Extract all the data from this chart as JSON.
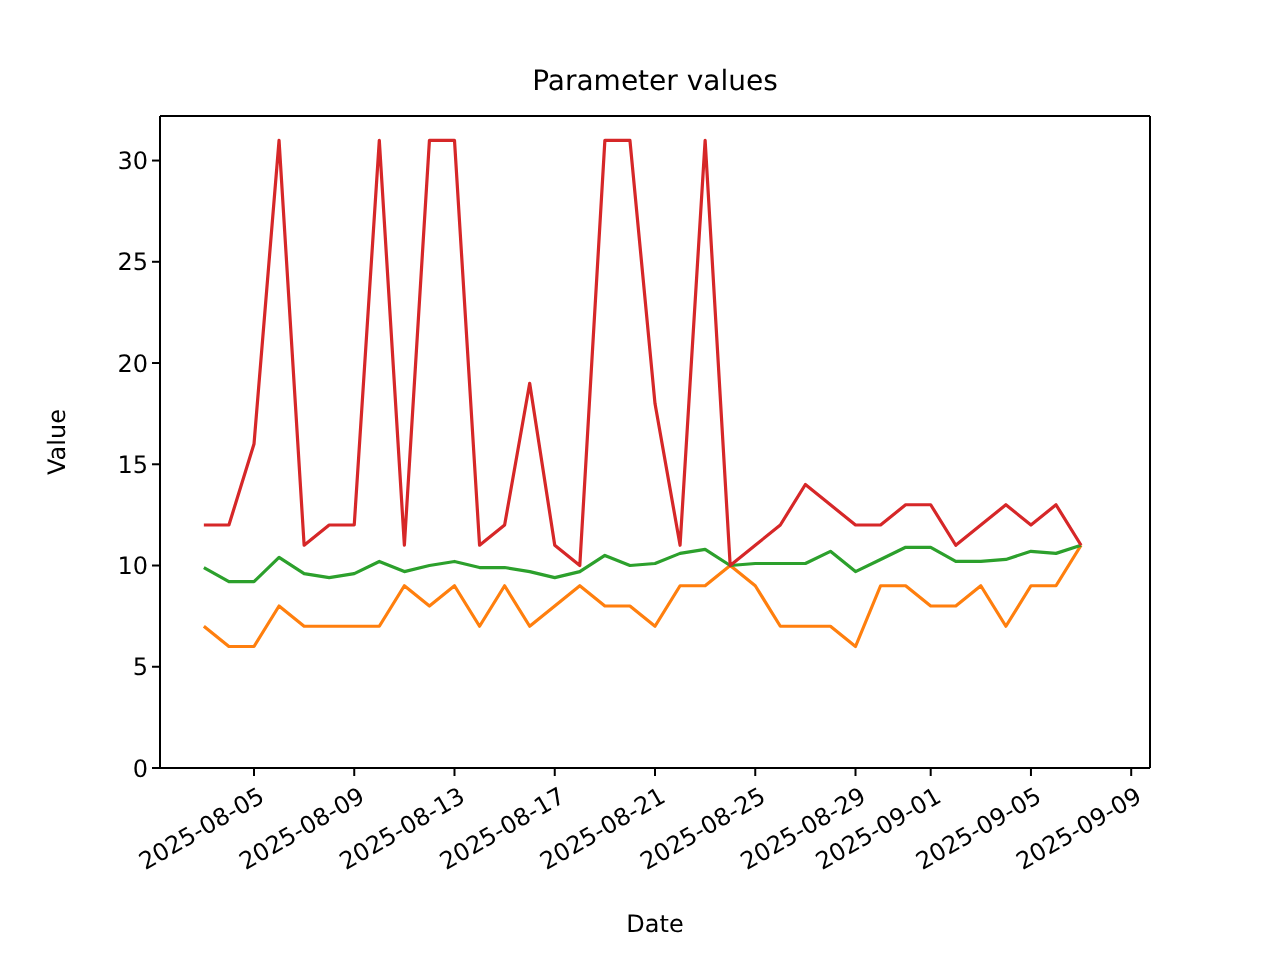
{
  "chart_data": {
    "type": "line",
    "title": "Parameter values",
    "xlabel": "Date",
    "ylabel": "Value",
    "x": [
      "2025-08-03",
      "2025-08-04",
      "2025-08-05",
      "2025-08-06",
      "2025-08-07",
      "2025-08-08",
      "2025-08-09",
      "2025-08-10",
      "2025-08-11",
      "2025-08-12",
      "2025-08-13",
      "2025-08-14",
      "2025-08-15",
      "2025-08-16",
      "2025-08-17",
      "2025-08-18",
      "2025-08-19",
      "2025-08-20",
      "2025-08-21",
      "2025-08-22",
      "2025-08-23",
      "2025-08-24",
      "2025-08-25",
      "2025-08-26",
      "2025-08-27",
      "2025-08-28",
      "2025-08-29",
      "2025-08-30",
      "2025-08-31",
      "2025-09-01",
      "2025-09-02",
      "2025-09-03",
      "2025-09-04",
      "2025-09-05",
      "2025-09-06",
      "2025-09-07"
    ],
    "series": [
      {
        "color": "#ff7f0e",
        "values": [
          7,
          6,
          6,
          8,
          7,
          7,
          7,
          7,
          9,
          8,
          9,
          7,
          9,
          7,
          8,
          9,
          8,
          8,
          7,
          9,
          9,
          10,
          9,
          7,
          7,
          7,
          6,
          9,
          9,
          8,
          8,
          9,
          7,
          9,
          9,
          11
        ]
      },
      {
        "color": "#2ca02c",
        "values": [
          9.9,
          9.2,
          9.2,
          10.4,
          9.6,
          9.4,
          9.6,
          10.2,
          9.7,
          10.0,
          10.2,
          9.9,
          9.9,
          9.7,
          9.4,
          9.7,
          10.5,
          10.0,
          10.1,
          10.6,
          10.8,
          10.0,
          10.1,
          10.1,
          10.1,
          10.7,
          9.7,
          10.3,
          10.9,
          10.9,
          10.2,
          10.2,
          10.3,
          10.7,
          10.6,
          11.0
        ]
      },
      {
        "color": "#d62728",
        "values": [
          12,
          12,
          16,
          31,
          11,
          12,
          12,
          31,
          11,
          31,
          31,
          11,
          12,
          19,
          11,
          10,
          31,
          31,
          18,
          11,
          31,
          10,
          11,
          12,
          14,
          13,
          12,
          12,
          13,
          13,
          11,
          12,
          13,
          12,
          13,
          11
        ]
      }
    ],
    "xlim": [
      "2025-08-01T06:00",
      "2025-09-09T18:00"
    ],
    "xticks": [
      "2025-08-05",
      "2025-08-09",
      "2025-08-13",
      "2025-08-17",
      "2025-08-21",
      "2025-08-25",
      "2025-08-29",
      "2025-09-01",
      "2025-09-05",
      "2025-09-09"
    ],
    "ylim": [
      0,
      32.2
    ],
    "yticks": [
      0,
      5,
      10,
      15,
      20,
      25,
      30
    ],
    "marker": "none",
    "line_style": "solid"
  }
}
